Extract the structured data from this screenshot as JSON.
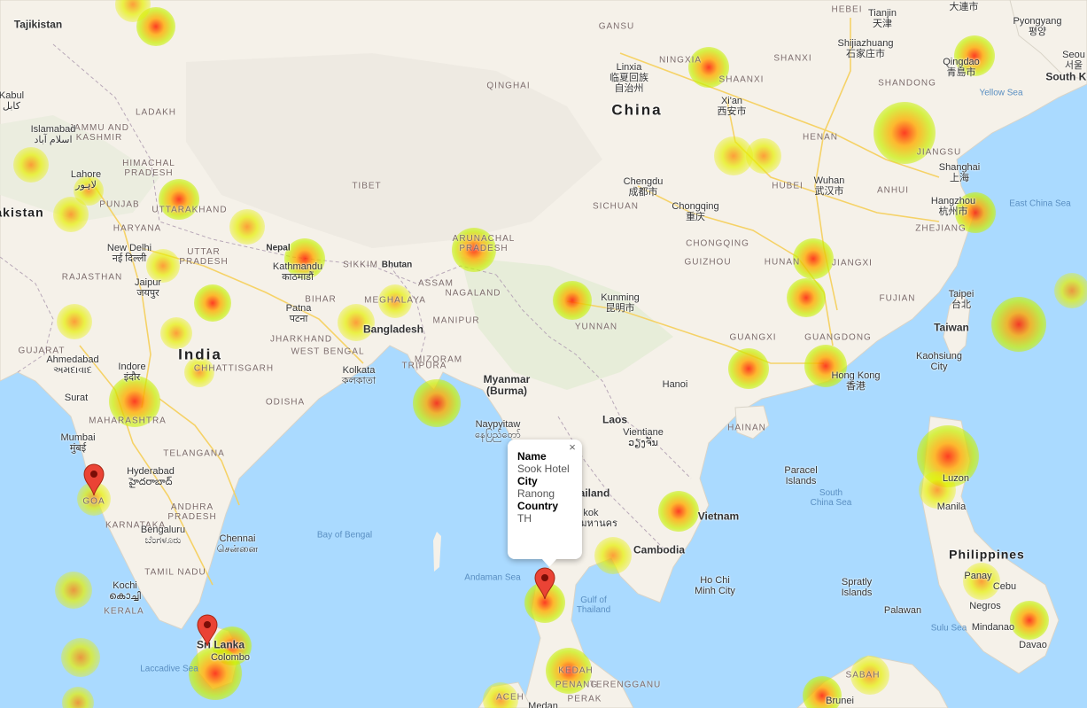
{
  "popup": {
    "name_label": "Name",
    "name_value": "Sook Hotel",
    "city_label": "City",
    "city_value": "Ranong",
    "country_label": "Country",
    "country_value": "TH",
    "close_glyph": "×"
  },
  "labels": {
    "country": {
      "china": "China",
      "india": "India",
      "tajikistan": "Tajikistan",
      "pakistan": "akistan",
      "nepal": "Nepal",
      "bhutan": "Bhutan",
      "bangladesh": "Bangladesh",
      "myanmar": "Myanmar\n(Burma)",
      "laos": "Laos",
      "thailand": "ailand",
      "cambodia": "Cambodia",
      "vietnam": "Vietnam",
      "taiwan": "Taiwan",
      "philippines": "Philippines",
      "sri_lanka": "Sri Lanka",
      "south_korea": "South Ko"
    },
    "regions": [
      "QINGHAI",
      "TIBET",
      "GANSU",
      "NINGXIA",
      "SHAANXI",
      "SHANXI",
      "HEBEI",
      "HENAN",
      "HUBEI",
      "ANHUI",
      "JIANGSU",
      "SHANDONG",
      "ZHEJIANG",
      "SICHUAN",
      "CHONGQING",
      "GUIZHOU",
      "HUNAN",
      "JIANGXI",
      "FUJIAN",
      "YUNNAN",
      "GUANGXI",
      "GUANGDONG",
      "HAINAN",
      "LADAKH",
      "JAMMU AND\nKASHMIR",
      "HIMACHAL\nPRADESH",
      "PUNJAB",
      "UTTARAKHAND",
      "HARYANA",
      "RAJASTHAN",
      "UTTAR\nPRADESH",
      "SIKKIM",
      "ASSAM",
      "NAGALAND",
      "ARUNACHAL\nPRADESH",
      "MEGHALAYA",
      "MANIPUR",
      "MIZORAM",
      "TRIPURA",
      "BIHAR",
      "JHARKHAND",
      "WEST BENGAL",
      "ODISHA",
      "CHHATTISGARH",
      "GUJARAT",
      "MAHARASHTRA",
      "TELANGANA",
      "ANDHRA\nPRADESH",
      "KARNATAKA",
      "TAMIL NADU",
      "KERALA",
      "GOA",
      "KEDAH",
      "PENANG",
      "PERAK",
      "TERENGGANU",
      "ACEH",
      "SABAH"
    ],
    "cities": {
      "tianjin": "Tianjin\n天津",
      "shijiazhuang": "Shijiazhuang\n石家庄市",
      "qingdao": "Qingdao\n青島市",
      "linxia": "Linxia\n临夏回族\n自治州",
      "xian": "Xi'an\n西安市",
      "chengdu": "Chengdu\n成都市",
      "chongqing": "Chongqing\n重庆",
      "wuhan": "Wuhan\n武汉市",
      "shanghai": "Shanghai\n上海",
      "hangzhou": "Hangzhou\n杭州市",
      "kunming": "Kunming\n昆明市",
      "hanoi": "Hanoi",
      "hong_kong": "Hong Kong\n香港",
      "taipei": "Taipei\n台北",
      "kaohsiung": "Kaohsiung\nCity",
      "manila": "Manila",
      "luzon": "Luzon",
      "cebu": "Cebu",
      "negros": "Negros",
      "panay": "Panay",
      "mindanao": "Mindanao",
      "davao": "Davao",
      "palawan": "Palawan",
      "spratly": "Spratly\nIslands",
      "paracel": "Paracel\nIslands",
      "vientiane": "Vientiane\nວຽງຈັນ",
      "naypyitaw": "Naypyitaw\nနေပြည်တော်",
      "ho_chi_minh": "Ho Chi\nMinh City",
      "kabul": "Kabul\nکابل",
      "islamabad": "Islamabad\nاسلام آباد",
      "lahore": "Lahore\nلاہور",
      "new_delhi": "New Delhi\nनई दिल्ली",
      "jaipur": "Jaipur\nजयपुर",
      "kathmandu": "Kathmandu\nकाठमाडौं",
      "patna": "Patna\nपटना",
      "kolkata": "Kolkata\nকলকাতা",
      "ahmedabad": "Ahmedabad\nઅમદાવાદ",
      "indore": "Indore\nइंदौर",
      "surat": "Surat",
      "mumbai": "Mumbai\nमुंबई",
      "hyderabad": "Hyderabad\nహైదరాబాద్",
      "bengaluru": "Bengaluru\nಬೆಂಗಳೂರು",
      "chennai": "Chennai\nசென்னை",
      "kochi": "Kochi\nകൊച്ചി",
      "colombo": "Colombo",
      "pyongyang": "Pyongyang\n평양",
      "seoul": "Seou\n서울",
      "dalian": "大連市",
      "bangkok": "kok\nเทพมหานคร",
      "medan": "Medan",
      "brunei": "Brunei"
    },
    "water": {
      "bay_of_bengal": "Bay of Bengal",
      "andaman": "Andaman Sea",
      "gulf_thailand": "Gulf of\nThailand",
      "south_china_sea": "South\nChina Sea",
      "east_china_sea": "East China Sea",
      "yellow_sea": "Yellow Sea",
      "sulu_sea": "Sulu Sea",
      "laccadive": "Laccadive Sea"
    }
  }
}
